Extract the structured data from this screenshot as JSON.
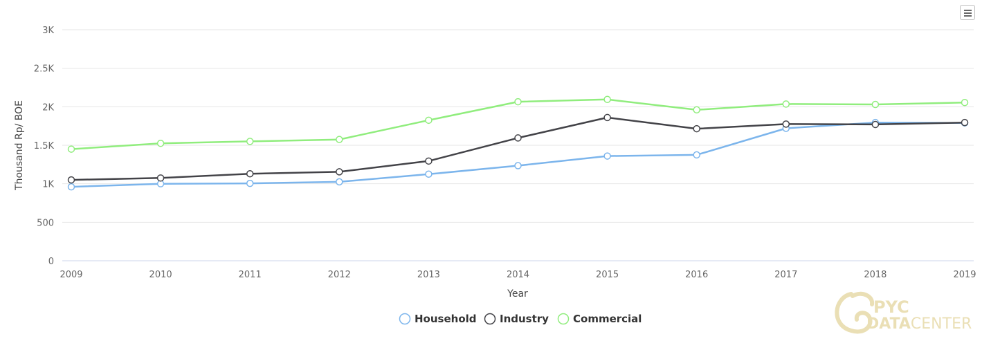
{
  "chart_data": {
    "type": "line",
    "title": "",
    "xlabel": "Year",
    "ylabel": "Thousand Rp/ BOE",
    "ylim": [
      0,
      3000
    ],
    "y_ticks": [
      0,
      500,
      1000,
      1500,
      2000,
      2500,
      3000
    ],
    "y_tick_labels": [
      "0",
      "500",
      "1K",
      "1.5K",
      "2K",
      "2.5K",
      "3K"
    ],
    "categories": [
      "2009",
      "2010",
      "2011",
      "2012",
      "2013",
      "2014",
      "2015",
      "2016",
      "2017",
      "2018",
      "2019"
    ],
    "grid": true,
    "legend_position": "bottom-center",
    "series": [
      {
        "name": "Household",
        "color": "#7cb5ec",
        "values": [
          960,
          1000,
          1005,
          1025,
          1125,
          1235,
          1360,
          1375,
          1720,
          1795,
          1790
        ]
      },
      {
        "name": "Industry",
        "color": "#434348",
        "values": [
          1050,
          1075,
          1130,
          1155,
          1295,
          1595,
          1860,
          1715,
          1775,
          1770,
          1795
        ]
      },
      {
        "name": "Commercial",
        "color": "#90ed7d",
        "values": [
          1450,
          1525,
          1550,
          1575,
          1825,
          2065,
          2095,
          1960,
          2035,
          2030,
          2055
        ]
      }
    ]
  },
  "watermark": {
    "line1": "PYC",
    "line2a": "DATA",
    "line2b": "CENTER"
  },
  "menu_icon": "hamburger-menu-icon"
}
